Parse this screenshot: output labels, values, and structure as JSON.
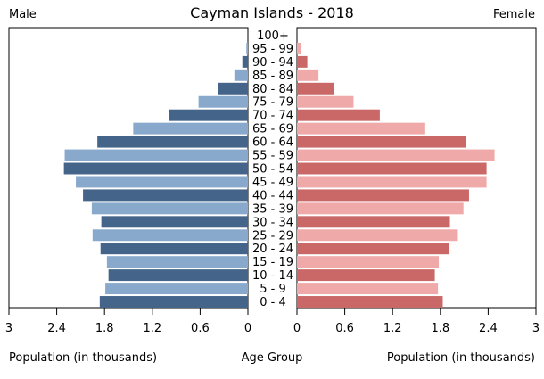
{
  "chart_data": {
    "type": "bar",
    "title": "Cayman Islands - 2018",
    "left_label": "Male",
    "right_label": "Female",
    "xlabel_left": "Population (in thousands)",
    "xlabel_center": "Age Group",
    "xlabel_right": "Population (in thousands)",
    "xlim": [
      0,
      3
    ],
    "ticks": [
      "3",
      "2.4",
      "1.8",
      "1.2",
      "0.6",
      "0"
    ],
    "ticks_right": [
      "0",
      "0.6",
      "1.2",
      "1.8",
      "2.4",
      "3"
    ],
    "categories": [
      "100+",
      "95 - 99",
      "90 - 94",
      "85 - 89",
      "80 - 84",
      "75 - 79",
      "70 - 74",
      "65 - 69",
      "60 - 64",
      "55 - 59",
      "50 - 54",
      "45 - 49",
      "40 - 44",
      "35 - 39",
      "30 - 34",
      "25 - 29",
      "20 - 24",
      "15 - 19",
      "10 - 14",
      "5 - 9",
      "0 - 4"
    ],
    "series": [
      {
        "name": "Male",
        "values": [
          0.0,
          0.02,
          0.07,
          0.17,
          0.38,
          0.62,
          0.99,
          1.44,
          1.89,
          2.3,
          2.31,
          2.16,
          2.07,
          1.96,
          1.84,
          1.95,
          1.85,
          1.77,
          1.75,
          1.79,
          1.86
        ]
      },
      {
        "name": "Female",
        "values": [
          0.0,
          0.05,
          0.13,
          0.27,
          0.47,
          0.71,
          1.04,
          1.61,
          2.12,
          2.48,
          2.38,
          2.38,
          2.16,
          2.09,
          1.92,
          2.02,
          1.91,
          1.78,
          1.73,
          1.77,
          1.83
        ]
      }
    ],
    "colors": {
      "male_dark": "#44648a",
      "male_light": "#89a9cc",
      "female_dark": "#c96867",
      "female_light": "#f0a9a9"
    }
  }
}
